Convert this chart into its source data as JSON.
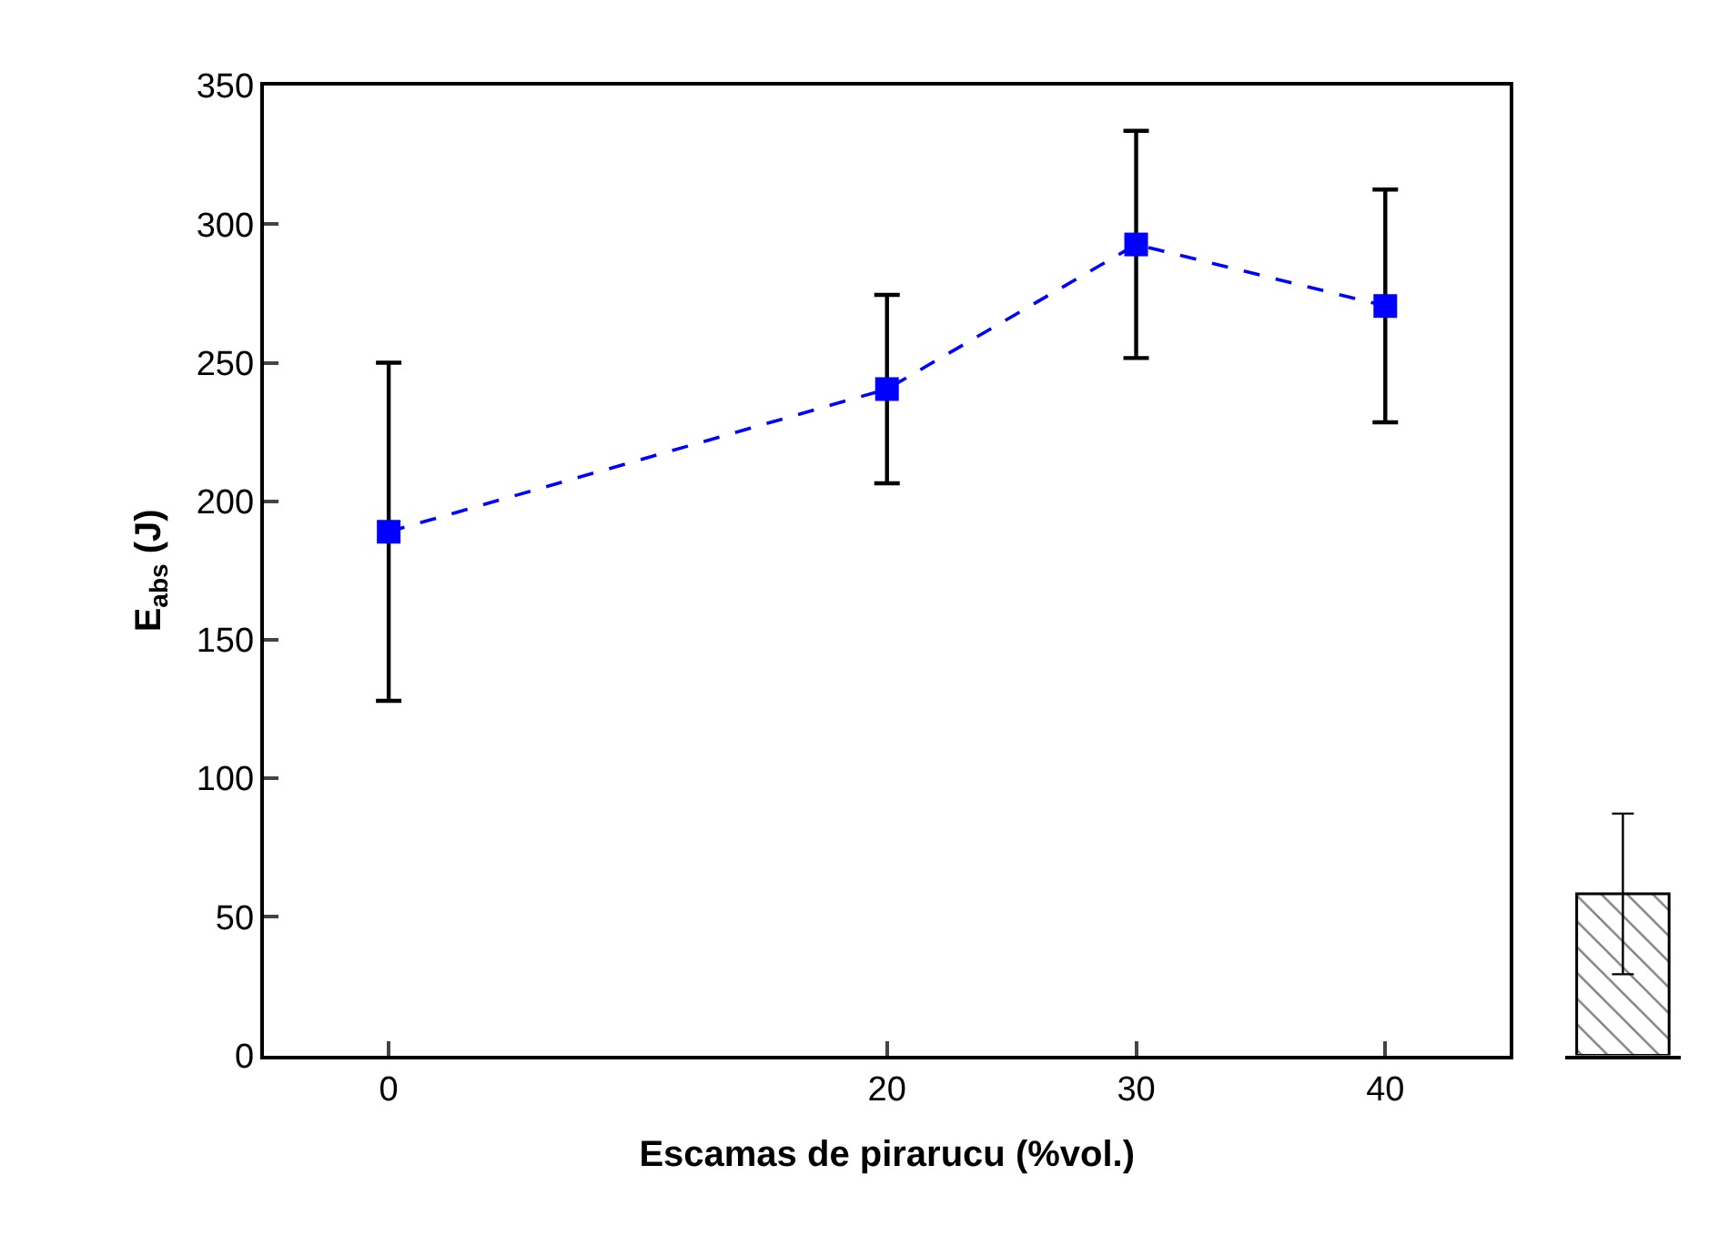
{
  "chart_data": [
    {
      "type": "line",
      "xlabel": "Escamas de pirarucu (%vol.)",
      "ylabel": "E$_{abs}$ (J)",
      "x": [
        0,
        20,
        30,
        40
      ],
      "series": [
        {
          "color": "#0000ff",
          "values": [
            189,
            240.5,
            292.7,
            270.5
          ],
          "errors": [
            61,
            34,
            41,
            42
          ]
        }
      ],
      "xlim": [
        -5,
        45
      ],
      "xticks": [
        0,
        20,
        30,
        40
      ],
      "ylim": [
        0,
        350
      ],
      "yticks": [
        0,
        50,
        100,
        150,
        200,
        250,
        300,
        350
      ],
      "marker": "square",
      "line_style": "dashed"
    },
    {
      "type": "bar",
      "categories": [
        null
      ],
      "values": [
        58.3
      ],
      "errors": [
        29
      ],
      "color": "#000000",
      "ylim": [
        0,
        350
      ],
      "tick_labels": false
    }
  ]
}
